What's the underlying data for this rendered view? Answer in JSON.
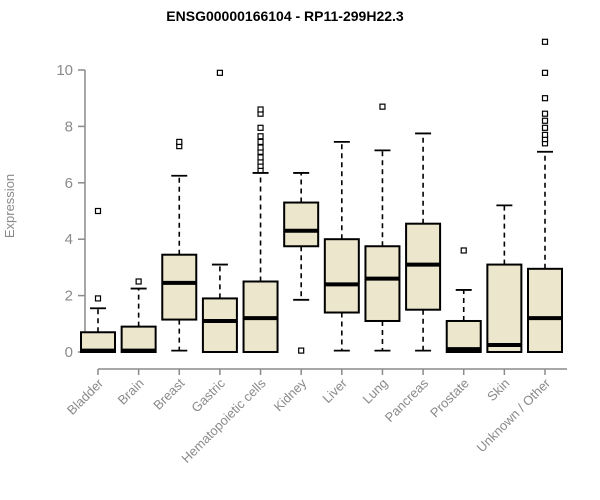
{
  "chart_data": {
    "type": "boxplot",
    "title": "ENSG00000166104 - RP11-299H22.3",
    "ylabel": "Expression",
    "xlabel": "",
    "ylim": [
      0,
      10
    ],
    "yticks": [
      0,
      2,
      4,
      6,
      8,
      10
    ],
    "grid": false,
    "legend_position": "none",
    "categories": [
      "Bladder",
      "Brain",
      "Breast",
      "Gastric",
      "Hematopoietic cells",
      "Kidney",
      "Liver",
      "Lung",
      "Pancreas",
      "Prostate",
      "Skin",
      "Unknown / Other"
    ],
    "series": [
      {
        "name": "Bladder",
        "whisker_low": 0,
        "q1": 0,
        "median": 0.05,
        "q3": 0.7,
        "whisker_high": 1.55,
        "outliers": [
          1.9,
          5.0
        ]
      },
      {
        "name": "Brain",
        "whisker_low": 0,
        "q1": 0,
        "median": 0.05,
        "q3": 0.9,
        "whisker_high": 2.25,
        "outliers": [
          2.5
        ]
      },
      {
        "name": "Breast",
        "whisker_low": 0.05,
        "q1": 1.15,
        "median": 2.45,
        "q3": 3.45,
        "whisker_high": 6.25,
        "outliers": [
          7.3,
          7.45
        ]
      },
      {
        "name": "Gastric",
        "whisker_low": 0,
        "q1": 0.0,
        "median": 1.1,
        "q3": 1.9,
        "whisker_high": 3.1,
        "outliers": [
          9.9
        ]
      },
      {
        "name": "Hematopoietic cells",
        "whisker_low": 0,
        "q1": 0,
        "median": 1.2,
        "q3": 2.5,
        "whisker_high": 6.35,
        "outliers": [
          6.45,
          6.6,
          6.75,
          6.9,
          7.1,
          7.25,
          7.45,
          7.65,
          7.95,
          8.45,
          8.6
        ]
      },
      {
        "name": "Kidney",
        "whisker_low": 1.85,
        "q1": 3.75,
        "median": 4.3,
        "q3": 5.3,
        "whisker_high": 6.35,
        "outliers": [
          0.05
        ]
      },
      {
        "name": "Liver",
        "whisker_low": 0.05,
        "q1": 1.4,
        "median": 2.4,
        "q3": 4.0,
        "whisker_high": 7.45,
        "outliers": []
      },
      {
        "name": "Lung",
        "whisker_low": 0.05,
        "q1": 1.1,
        "median": 2.6,
        "q3": 3.75,
        "whisker_high": 7.15,
        "outliers": [
          8.7
        ]
      },
      {
        "name": "Pancreas",
        "whisker_low": 0.05,
        "q1": 1.5,
        "median": 3.1,
        "q3": 4.55,
        "whisker_high": 7.75,
        "outliers": []
      },
      {
        "name": "Prostate",
        "whisker_low": 0,
        "q1": 0,
        "median": 0.1,
        "q3": 1.1,
        "whisker_high": 2.2,
        "outliers": [
          3.6
        ]
      },
      {
        "name": "Skin",
        "whisker_low": 0,
        "q1": 0,
        "median": 0.25,
        "q3": 3.1,
        "whisker_high": 5.2,
        "outliers": []
      },
      {
        "name": "Unknown / Other",
        "whisker_low": 0,
        "q1": 0,
        "median": 1.2,
        "q3": 2.95,
        "whisker_high": 7.1,
        "outliers": [
          7.4,
          7.55,
          7.7,
          7.95,
          8.2,
          8.45,
          9.0,
          9.9,
          11.0
        ]
      }
    ],
    "colors": {
      "box_fill": "#ECE7CC",
      "box_border": "#000000",
      "median": "#000000",
      "whisker": "#000000",
      "outlier_stroke": "#000000",
      "outlier_fill": "#FFFFFF",
      "axis": "#8A8A8A",
      "tick_label": "#8A8A8A",
      "title": "#000000",
      "background": "#FFFFFF"
    }
  }
}
